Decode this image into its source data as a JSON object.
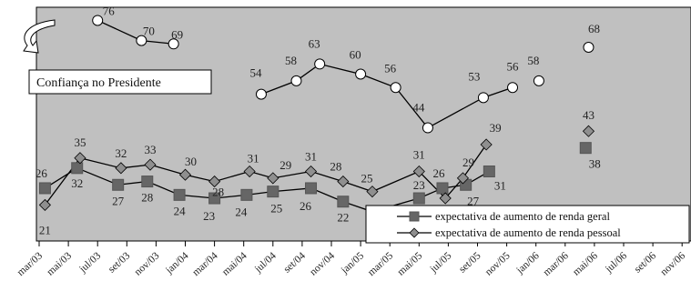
{
  "chart_data": {
    "type": "line",
    "x": [
      "mar/03",
      "mai/03",
      "jul/03",
      "set/03",
      "nov/03",
      "jan/04",
      "mar/04",
      "mai/04",
      "jul/04",
      "set/04",
      "nov/04",
      "jan/05",
      "mar/05",
      "mai/05",
      "jul/05",
      "set/05",
      "nov/05",
      "jan/06",
      "mar/06",
      "mai/06",
      "jul/06",
      "set/06",
      "nov/06"
    ],
    "series": [
      {
        "name": "Confiança no Presidente",
        "points": [
          {
            "x": 2.0,
            "y": 76,
            "label": "76"
          },
          {
            "x": 3.5,
            "y": 70,
            "label": "70"
          },
          {
            "x": 4.6,
            "y": 69,
            "label": "69"
          },
          {
            "x": 7.6,
            "y": 54,
            "label": "54"
          },
          {
            "x": 8.8,
            "y": 58,
            "label": "58"
          },
          {
            "x": 9.6,
            "y": 63,
            "label": "63"
          },
          {
            "x": 11.0,
            "y": 60,
            "label": "60"
          },
          {
            "x": 12.2,
            "y": 56,
            "label": "56"
          },
          {
            "x": 13.3,
            "y": 44,
            "label": "44"
          },
          {
            "x": 15.2,
            "y": 53,
            "label": "53"
          },
          {
            "x": 16.2,
            "y": 56,
            "label": "56"
          },
          {
            "x": 17.1,
            "y": 58,
            "label": "58"
          },
          {
            "x": 18.8,
            "y": 68,
            "label": "68"
          }
        ],
        "segments": [
          [
            0,
            2
          ],
          [
            3,
            10
          ]
        ]
      },
      {
        "name": "expectativa de aumento de renda geral",
        "points": [
          {
            "x": 0.2,
            "y": 26,
            "label": "26"
          },
          {
            "x": 1.3,
            "y": 32,
            "label": "32"
          },
          {
            "x": 2.7,
            "y": 27,
            "label": "27"
          },
          {
            "x": 3.7,
            "y": 28,
            "label": "28"
          },
          {
            "x": 4.8,
            "y": 24,
            "label": "24"
          },
          {
            "x": 6.0,
            "y": 23,
            "label": "23"
          },
          {
            "x": 7.1,
            "y": 24,
            "label": "24"
          },
          {
            "x": 8.0,
            "y": 25,
            "label": "25"
          },
          {
            "x": 9.3,
            "y": 26,
            "label": "26"
          },
          {
            "x": 10.4,
            "y": 22,
            "label": "22"
          },
          {
            "x": 11.4,
            "y": 19,
            "label": "19"
          },
          {
            "x": 13.0,
            "y": 23,
            "label": "23"
          },
          {
            "x": 13.8,
            "y": 26,
            "label": "26"
          },
          {
            "x": 14.6,
            "y": 27,
            "label": "27"
          },
          {
            "x": 15.4,
            "y": 31,
            "label": "31"
          },
          {
            "x": 18.7,
            "y": 38,
            "label": "38"
          }
        ],
        "segments": [
          [
            0,
            14
          ]
        ]
      },
      {
        "name": "expectativa de aumento de renda pessoal",
        "points": [
          {
            "x": 0.2,
            "y": 21,
            "label": "21"
          },
          {
            "x": 1.4,
            "y": 35,
            "label": "35"
          },
          {
            "x": 2.8,
            "y": 32,
            "label": "32"
          },
          {
            "x": 3.8,
            "y": 33,
            "label": "33"
          },
          {
            "x": 5.0,
            "y": 30,
            "label": "30"
          },
          {
            "x": 6.0,
            "y": 28,
            "label": "28"
          },
          {
            "x": 7.2,
            "y": 31,
            "label": "31"
          },
          {
            "x": 8.0,
            "y": 29,
            "label": "29"
          },
          {
            "x": 9.3,
            "y": 31,
            "label": "31"
          },
          {
            "x": 10.4,
            "y": 28,
            "label": "28"
          },
          {
            "x": 11.4,
            "y": 25,
            "label": "25"
          },
          {
            "x": 13.0,
            "y": 31,
            "label": "31"
          },
          {
            "x": 13.9,
            "y": 23,
            "label": "23"
          },
          {
            "x": 14.5,
            "y": 29,
            "label": "29"
          },
          {
            "x": 15.3,
            "y": 39,
            "label": "39"
          },
          {
            "x": 18.8,
            "y": 43,
            "label": "43"
          }
        ],
        "segments": [
          [
            0,
            14
          ]
        ]
      }
    ],
    "ylim": [
      10,
      80
    ],
    "annotation": "Confiança no Presidente",
    "legend": {
      "placement": "bottom-right",
      "entries": [
        "expectativa de aumento de renda geral",
        "expectativa de aumento de renda pessoal"
      ]
    },
    "colors": {
      "plot_bg": "#c0c0c0",
      "confianca": "#ffffff",
      "geral": "#666666",
      "pessoal": "#8f8f8f",
      "line": "#000000"
    },
    "grid": false
  }
}
